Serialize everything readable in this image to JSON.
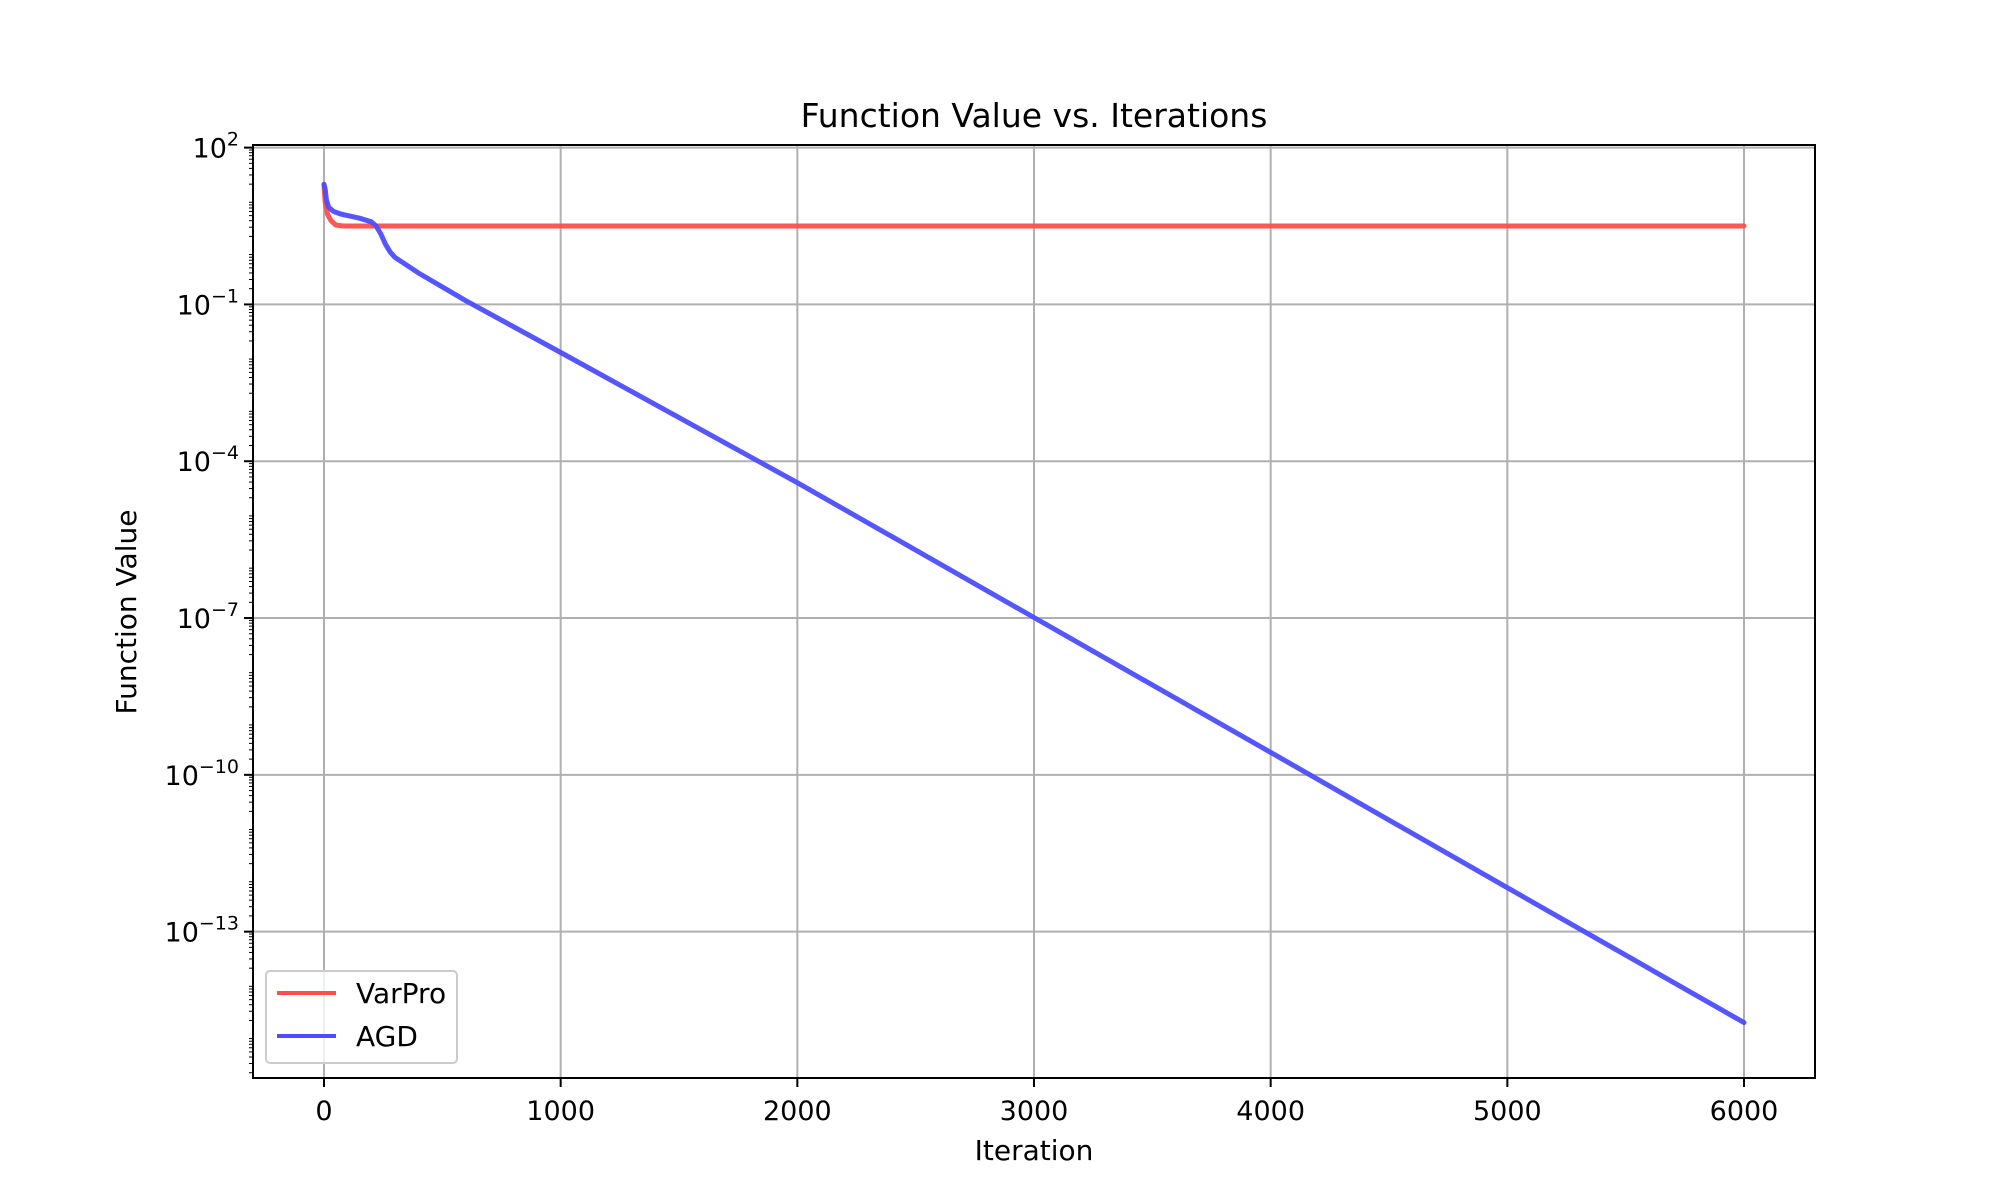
{
  "chart_data": {
    "type": "line",
    "title": "Function Value vs. Iterations",
    "xlabel": "Iteration",
    "ylabel": "Function Value",
    "xlim": [
      -300,
      6300
    ],
    "ylim_log10": [
      -15.8,
      2.05
    ],
    "yscale": "log",
    "grid": true,
    "legend_position": "lower-left",
    "x_ticks": [
      {
        "value": 0,
        "label": "0"
      },
      {
        "value": 1000,
        "label": "1000"
      },
      {
        "value": 2000,
        "label": "2000"
      },
      {
        "value": 3000,
        "label": "3000"
      },
      {
        "value": 4000,
        "label": "4000"
      },
      {
        "value": 5000,
        "label": "5000"
      },
      {
        "value": 6000,
        "label": "6000"
      }
    ],
    "y_ticks": [
      {
        "exp": 2,
        "base": "10",
        "label": "2"
      },
      {
        "exp": -1,
        "base": "10",
        "label": "−1"
      },
      {
        "exp": -4,
        "base": "10",
        "label": "−4"
      },
      {
        "exp": -7,
        "base": "10",
        "label": "−7"
      },
      {
        "exp": -10,
        "base": "10",
        "label": "−10"
      },
      {
        "exp": -13,
        "base": "10",
        "label": "−13"
      }
    ],
    "series": [
      {
        "name": "VarPro",
        "color": "#ff4d4d",
        "x": [
          0,
          5,
          15,
          30,
          50,
          80,
          120,
          200,
          400,
          1000,
          3000,
          6000
        ],
        "log10_y": [
          1.28,
          0.95,
          0.72,
          0.6,
          0.52,
          0.5,
          0.5,
          0.5,
          0.5,
          0.5,
          0.5,
          0.5
        ]
      },
      {
        "name": "AGD",
        "color": "#4d4dff",
        "x": [
          0,
          5,
          10,
          20,
          40,
          70,
          100,
          150,
          200,
          220,
          240,
          260,
          280,
          300,
          400,
          600,
          1000,
          2000,
          3000,
          4000,
          5000,
          6000
        ],
        "log10_y": [
          1.3,
          1.2,
          1.0,
          0.86,
          0.78,
          0.73,
          0.7,
          0.65,
          0.58,
          0.5,
          0.35,
          0.15,
          0.0,
          -0.1,
          -0.4,
          -0.93,
          -1.92,
          -4.41,
          -6.99,
          -9.57,
          -12.16,
          -14.74
        ]
      }
    ]
  }
}
